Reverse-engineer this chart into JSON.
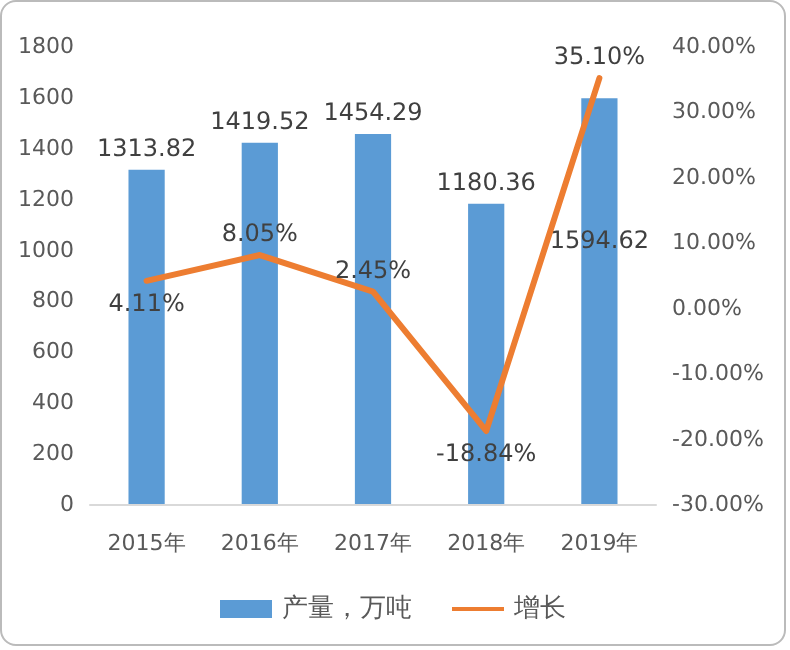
{
  "chart_data": {
    "type": "bar",
    "categories": [
      "2015年",
      "2016年",
      "2017年",
      "2018年",
      "2019年"
    ],
    "series": [
      {
        "name": "产量，万吨",
        "color": "#5b9bd5",
        "values": [
          1313.82,
          1419.52,
          1454.29,
          1180.36,
          1594.62
        ],
        "value_labels": [
          "1313.82",
          "1419.52",
          "1454.29",
          "1180.36",
          "1594.62"
        ]
      },
      {
        "name": "增长",
        "type": "line",
        "axis": "y2",
        "color": "#ed7d31",
        "values": [
          4.11,
          8.05,
          2.45,
          -18.84,
          35.1
        ],
        "value_labels": [
          "4.11%",
          "8.05%",
          "2.45%",
          "-18.84%",
          "35.10%"
        ]
      }
    ],
    "ylim": [
      0,
      1800
    ],
    "yticks": [
      0,
      200,
      400,
      600,
      800,
      1000,
      1200,
      1400,
      1600,
      1800
    ],
    "y2lim": [
      -30,
      40
    ],
    "y2ticks": [
      {
        "value": -30,
        "label": "-30.00%"
      },
      {
        "value": -20,
        "label": "-20.00%"
      },
      {
        "value": -10,
        "label": "-10.00%"
      },
      {
        "value": 0,
        "label": "0.00%"
      },
      {
        "value": 10,
        "label": "10.00%"
      },
      {
        "value": 20,
        "label": "20.00%"
      },
      {
        "value": 30,
        "label": "30.00%"
      },
      {
        "value": 40,
        "label": "40.00%"
      }
    ],
    "grid": false,
    "legend": "bottom",
    "marker": "none",
    "line_style": "solid"
  }
}
